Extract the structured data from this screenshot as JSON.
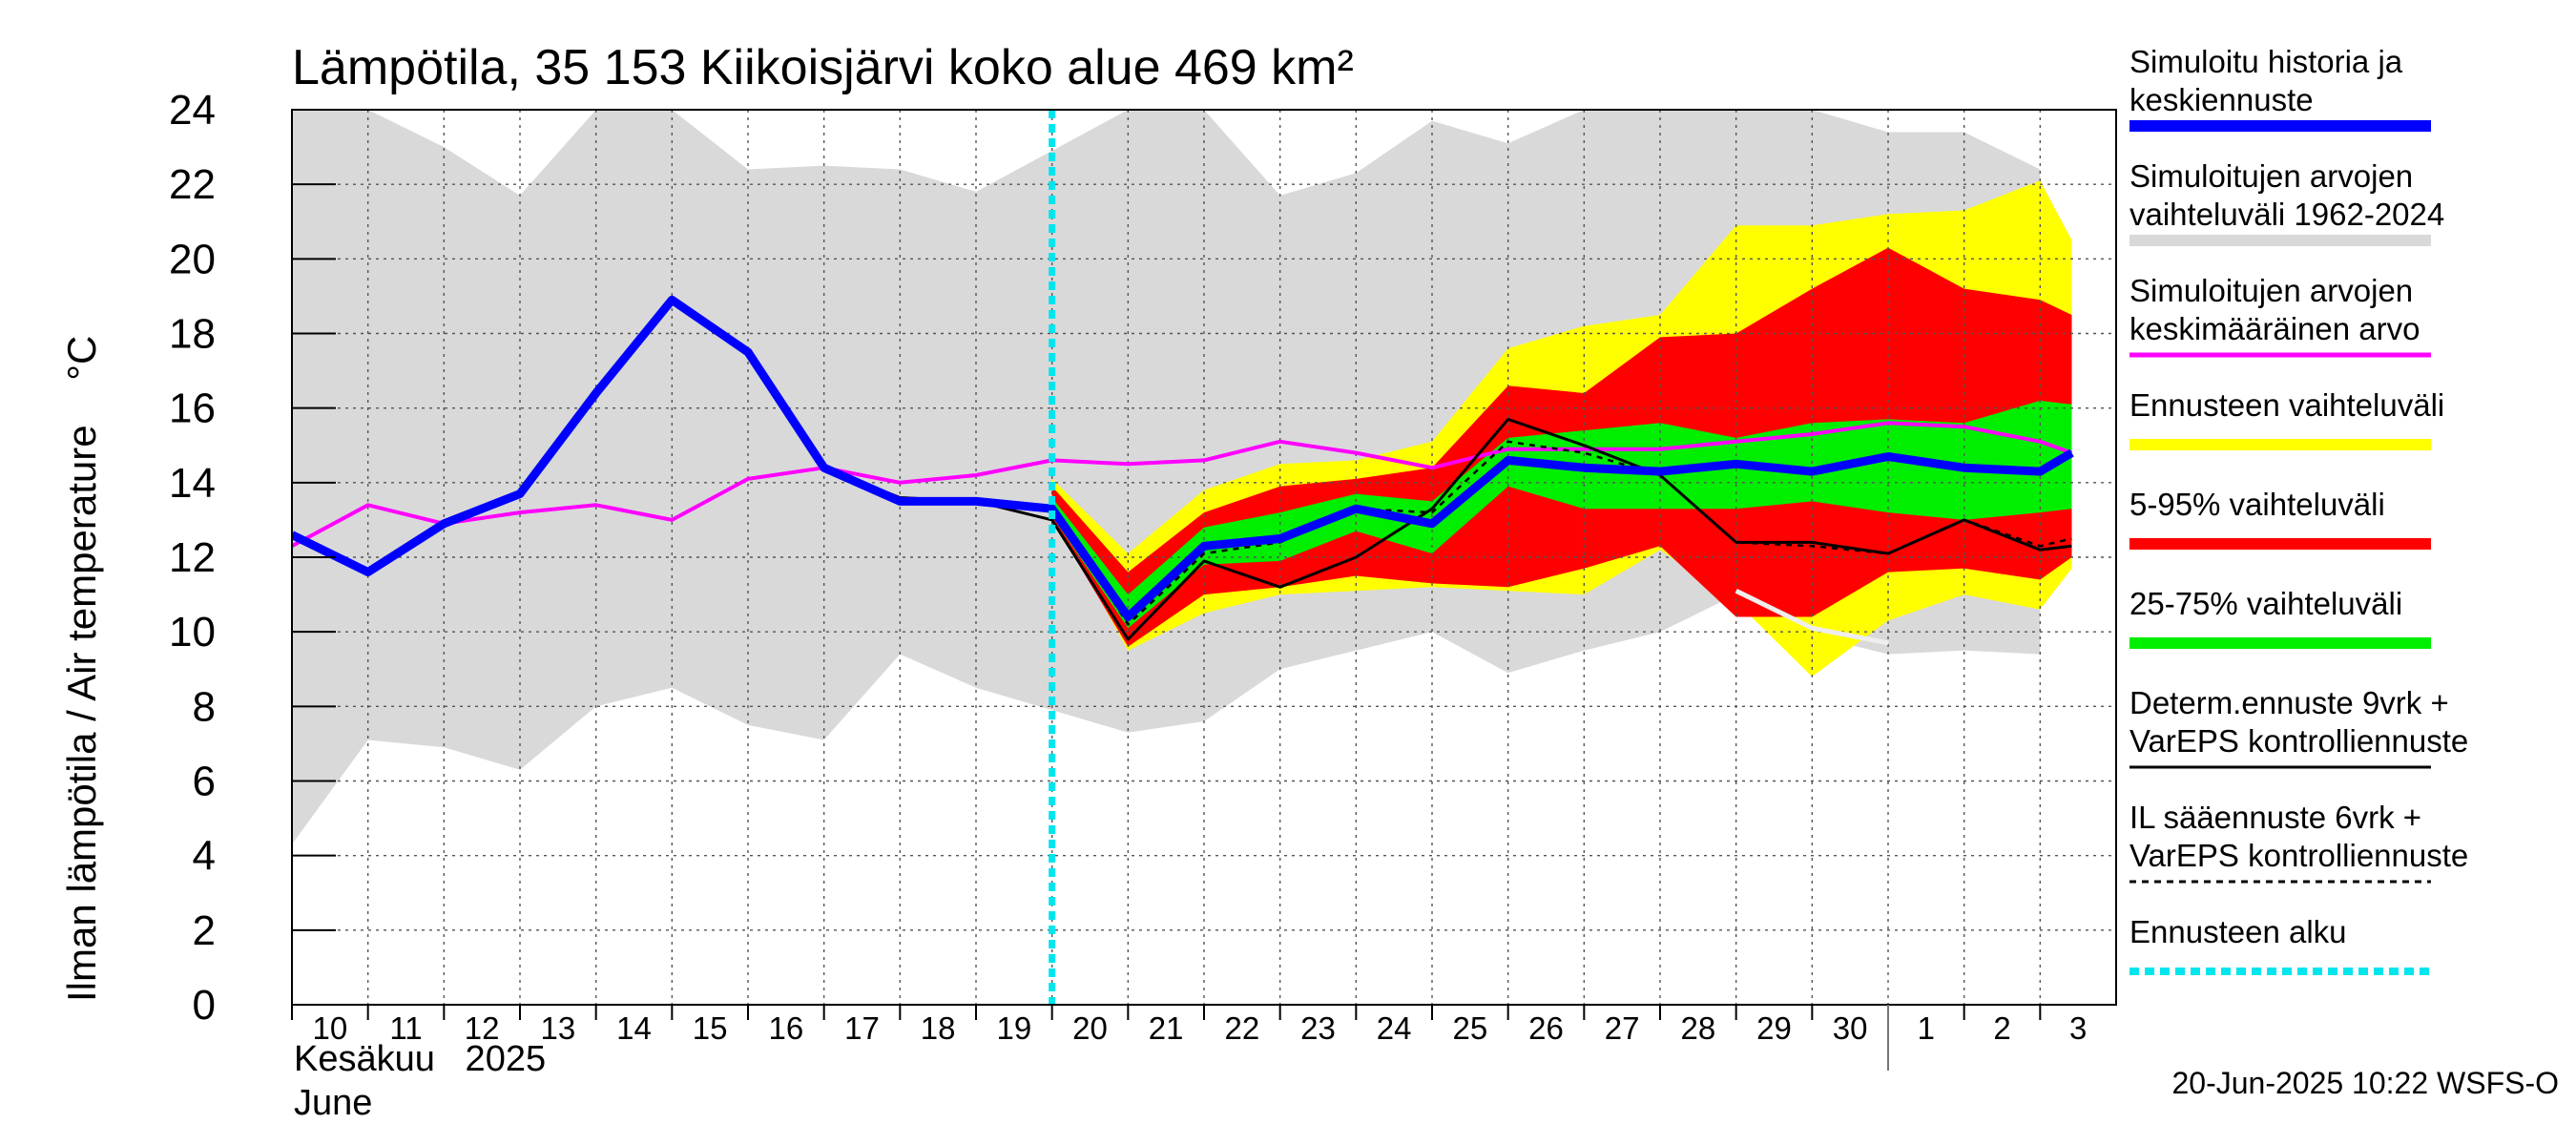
{
  "chart_data": {
    "type": "area",
    "title": "Lämpötila, 35 153 Kiikoisjärvi koko alue 469 km²",
    "ylabel": "Ilman lämpötila / Air temperature    °C",
    "xlabel_line1": "Kesäkuu   2025",
    "xlabel_line2": "June",
    "ylim": [
      0,
      24
    ],
    "yticks": [
      0,
      2,
      4,
      6,
      8,
      10,
      12,
      14,
      16,
      18,
      20,
      22,
      24
    ],
    "x_start": "2025-06-10",
    "x_end": "2025-07-03",
    "x_tick_labels": [
      "10",
      "11",
      "12",
      "13",
      "14",
      "15",
      "16",
      "17",
      "18",
      "19",
      "20",
      "21",
      "22",
      "23",
      "24",
      "25",
      "26",
      "27",
      "28",
      "29",
      "30",
      "1",
      "2",
      "3"
    ],
    "month_boundary": "2025-07-01",
    "forecast_start": "2025-06-20",
    "grid": true,
    "legend_position": "right",
    "timestamp": "20-Jun-2025 10:22 WSFS-O",
    "colors": {
      "history_band": "#d9d9d9",
      "forecast_range": "#ffff00",
      "p5_95": "#ff0000",
      "p25_75": "#00ee00",
      "simulated": "#0000ff",
      "mean": "#ff00ff",
      "deterministic": "#000000",
      "il_forecast": "#000000",
      "forecast_start": "#00e5ee"
    },
    "series": [
      {
        "name": "Simuloitujen arvojen vaihteluväli 1962-2024",
        "kind": "band",
        "x": [
          "2025-06-10",
          "2025-06-11",
          "2025-06-12",
          "2025-06-13",
          "2025-06-14",
          "2025-06-15",
          "2025-06-16",
          "2025-06-17",
          "2025-06-18",
          "2025-06-19",
          "2025-06-20",
          "2025-06-21",
          "2025-06-22",
          "2025-06-23",
          "2025-06-24",
          "2025-06-25",
          "2025-06-26",
          "2025-06-27",
          "2025-06-28",
          "2025-06-29",
          "2025-06-30",
          "2025-07-01",
          "2025-07-02",
          "2025-07-03"
        ],
        "low": [
          4.3,
          7.1,
          6.9,
          6.3,
          8.0,
          8.5,
          7.5,
          7.1,
          9.4,
          8.5,
          7.9,
          7.3,
          7.6,
          9.0,
          9.5,
          10.0,
          8.9,
          9.5,
          10.0,
          11.0,
          9.9,
          9.4,
          9.5,
          9.4
        ],
        "high": [
          24.0,
          24.0,
          23.0,
          21.7,
          24.0,
          24.0,
          22.4,
          22.5,
          22.4,
          21.8,
          22.9,
          24.0,
          24.0,
          21.7,
          22.3,
          23.7,
          23.1,
          24.0,
          24.0,
          24.0,
          24.0,
          23.4,
          23.4,
          22.4
        ]
      },
      {
        "name": "Ennusteen vaihteluväli",
        "kind": "band",
        "x": [
          "2025-06-20",
          "2025-06-21",
          "2025-06-22",
          "2025-06-23",
          "2025-06-24",
          "2025-06-25",
          "2025-06-26",
          "2025-06-27",
          "2025-06-28",
          "2025-06-29",
          "2025-06-30",
          "2025-07-01",
          "2025-07-02",
          "2025-07-03",
          "2025-07-03 10:00"
        ],
        "low": [
          13.2,
          9.5,
          10.5,
          11.0,
          11.1,
          11.2,
          11.1,
          11.0,
          12.2,
          10.8,
          8.8,
          10.3,
          11.0,
          10.6,
          11.7
        ],
        "high": [
          14.1,
          12.1,
          13.8,
          14.5,
          14.6,
          15.1,
          17.6,
          18.2,
          18.5,
          20.9,
          20.9,
          21.2,
          21.3,
          22.1,
          20.5
        ]
      },
      {
        "name": "5-95% vaihteluväli",
        "kind": "band",
        "x": [
          "2025-06-20",
          "2025-06-21",
          "2025-06-22",
          "2025-06-23",
          "2025-06-24",
          "2025-06-25",
          "2025-06-26",
          "2025-06-27",
          "2025-06-28",
          "2025-06-29",
          "2025-06-30",
          "2025-07-01",
          "2025-07-02",
          "2025-07-03",
          "2025-07-03 10:00"
        ],
        "low": [
          13.0,
          9.6,
          11.0,
          11.2,
          11.5,
          11.3,
          11.2,
          11.7,
          12.3,
          10.4,
          10.4,
          11.6,
          11.7,
          11.4,
          12.0
        ],
        "high": [
          13.9,
          11.6,
          13.2,
          13.9,
          14.1,
          14.4,
          16.6,
          16.4,
          17.9,
          18.0,
          19.2,
          20.3,
          19.2,
          18.9,
          18.5
        ]
      },
      {
        "name": "25-75% vaihteluväli",
        "kind": "band",
        "x": [
          "2025-06-20",
          "2025-06-21",
          "2025-06-22",
          "2025-06-23",
          "2025-06-24",
          "2025-06-25",
          "2025-06-26",
          "2025-06-27",
          "2025-06-28",
          "2025-06-29",
          "2025-06-30",
          "2025-07-01",
          "2025-07-02",
          "2025-07-03",
          "2025-07-03 10:00"
        ],
        "low": [
          13.1,
          10.1,
          11.8,
          11.9,
          12.7,
          12.1,
          13.9,
          13.3,
          13.3,
          13.3,
          13.5,
          13.2,
          13.0,
          13.2,
          13.3
        ],
        "high": [
          13.6,
          11.0,
          12.8,
          13.2,
          13.7,
          13.5,
          15.2,
          15.4,
          15.6,
          15.2,
          15.6,
          15.7,
          15.6,
          16.2,
          16.1
        ]
      },
      {
        "name": "Simuloitujen arvojen keskimääräinen arvo",
        "kind": "line",
        "x": [
          "2025-06-10",
          "2025-06-11",
          "2025-06-12",
          "2025-06-13",
          "2025-06-14",
          "2025-06-15",
          "2025-06-16",
          "2025-06-17",
          "2025-06-18",
          "2025-06-19",
          "2025-06-20",
          "2025-06-21",
          "2025-06-22",
          "2025-06-23",
          "2025-06-24",
          "2025-06-25",
          "2025-06-26",
          "2025-06-27",
          "2025-06-28",
          "2025-06-29",
          "2025-06-30",
          "2025-07-01",
          "2025-07-02",
          "2025-07-03",
          "2025-07-03 10:00"
        ],
        "values": [
          12.3,
          13.4,
          12.9,
          13.2,
          13.4,
          13.0,
          14.1,
          14.4,
          14.0,
          14.2,
          14.6,
          14.5,
          14.6,
          15.1,
          14.8,
          14.4,
          14.9,
          14.9,
          14.9,
          15.1,
          15.3,
          15.6,
          15.5,
          15.1,
          14.8
        ]
      },
      {
        "name": "IL sääennuste 6vrk + VarEPS kontrolliennuste",
        "kind": "dashed",
        "x": [
          "2025-06-20",
          "2025-06-21",
          "2025-06-22",
          "2025-06-23",
          "2025-06-24",
          "2025-06-25",
          "2025-06-26",
          "2025-06-27",
          "2025-06-28",
          "2025-06-29",
          "2025-06-30",
          "2025-07-01",
          "2025-07-02",
          "2025-07-03",
          "2025-07-03 10:00"
        ],
        "values": [
          13.4,
          10.2,
          12.1,
          12.4,
          13.3,
          13.2,
          15.1,
          14.8,
          14.2,
          12.4,
          12.3,
          12.1,
          13.0,
          12.3,
          12.5
        ]
      },
      {
        "name": "Determ.ennuste 9vrk + VarEPS kontrolliennuste",
        "kind": "line",
        "x": [
          "2025-06-17",
          "2025-06-18",
          "2025-06-19",
          "2025-06-20",
          "2025-06-21",
          "2025-06-22",
          "2025-06-23",
          "2025-06-24",
          "2025-06-25",
          "2025-06-26",
          "2025-06-27",
          "2025-06-28",
          "2025-06-29",
          "2025-06-30",
          "2025-07-01",
          "2025-07-02",
          "2025-07-03",
          "2025-07-03 10:00"
        ],
        "values": [
          14.4,
          13.6,
          13.5,
          13.0,
          9.8,
          11.9,
          11.2,
          12.0,
          13.3,
          15.7,
          15.0,
          14.2,
          12.4,
          12.4,
          12.1,
          13.0,
          12.2,
          12.3
        ]
      },
      {
        "name": "",
        "kind": "line",
        "x": [
          "2025-06-29",
          "2025-06-30",
          "2025-07-01"
        ],
        "values": [
          11.1,
          10.1,
          9.7
        ]
      },
      {
        "name": "Simuloitu historia ja keskiennuste",
        "kind": "line",
        "x": [
          "2025-06-10",
          "2025-06-11",
          "2025-06-12",
          "2025-06-13",
          "2025-06-14",
          "2025-06-15",
          "2025-06-16",
          "2025-06-17",
          "2025-06-18",
          "2025-06-19",
          "2025-06-20",
          "2025-06-21",
          "2025-06-22",
          "2025-06-23",
          "2025-06-24",
          "2025-06-25",
          "2025-06-26",
          "2025-06-27",
          "2025-06-28",
          "2025-06-29",
          "2025-06-30",
          "2025-07-01",
          "2025-07-02",
          "2025-07-03",
          "2025-07-03 10:00"
        ],
        "values": [
          12.6,
          11.6,
          12.9,
          13.7,
          16.4,
          18.9,
          17.5,
          14.4,
          13.5,
          13.5,
          13.3,
          10.4,
          12.3,
          12.5,
          13.3,
          12.9,
          14.6,
          14.4,
          14.3,
          14.5,
          14.3,
          14.7,
          14.4,
          14.3,
          14.8
        ]
      }
    ]
  },
  "legend": {
    "items": [
      {
        "line1": "Simuloitu historia ja",
        "line2": "keskiennuste",
        "color": "#0000ff",
        "style": "thick"
      },
      {
        "line1": "Simuloitujen arvojen",
        "line2": "vaihteluväli 1962-2024",
        "color": "#d9d9d9",
        "style": "thick"
      },
      {
        "line1": "Simuloitujen arvojen",
        "line2": "keskimääräinen arvo",
        "color": "#ff00ff",
        "style": "medium"
      },
      {
        "line1": "Ennusteen vaihteluväli",
        "line2": "",
        "color": "#ffff00",
        "style": "thick"
      },
      {
        "line1": "5-95% vaihteluväli",
        "line2": "",
        "color": "#ff0000",
        "style": "thick"
      },
      {
        "line1": "25-75% vaihteluväli",
        "line2": "",
        "color": "#00ee00",
        "style": "thick"
      },
      {
        "line1": "Determ.ennuste 9vrk +",
        "line2": "VarEPS kontrolliennuste",
        "color": "#000000",
        "style": "thin"
      },
      {
        "line1": "IL sääennuste 6vrk  +",
        "line2": "  VarEPS kontrolliennuste",
        "color": "#000000",
        "style": "dashed"
      },
      {
        "line1": "Ennusteen alku",
        "line2": "",
        "color": "#00e5ee",
        "style": "dotted"
      }
    ]
  }
}
